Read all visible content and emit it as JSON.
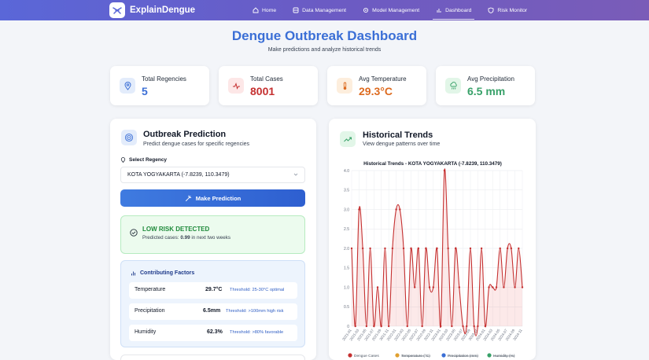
{
  "nav": {
    "brand": "ExplainDengue",
    "items": [
      {
        "label": "Home",
        "icon": "home-icon",
        "active": false
      },
      {
        "label": "Data Management",
        "icon": "database-icon",
        "active": false
      },
      {
        "label": "Model Management",
        "icon": "gear-icon",
        "active": false
      },
      {
        "label": "Dashboard",
        "icon": "bar-chart-icon",
        "active": true
      },
      {
        "label": "Risk Monitor",
        "icon": "shield-icon",
        "active": false
      }
    ]
  },
  "header": {
    "title": "Dengue Outbreak Dashboard",
    "subtitle": "Make predictions and analyze historical trends"
  },
  "stats": [
    {
      "label": "Total Regencies",
      "value": "5",
      "color": "#3b6fd6",
      "icon": "map-pin-icon"
    },
    {
      "label": "Total Cases",
      "value": "8001",
      "color": "#c53030",
      "icon": "pulse-icon"
    },
    {
      "label": "Avg Temperature",
      "value": "29.3°C",
      "color": "#dd6b20",
      "icon": "thermometer-icon"
    },
    {
      "label": "Avg Precipitation",
      "value": "6.5 mm",
      "color": "#38a169",
      "icon": "cloud-rain-icon"
    }
  ],
  "prediction": {
    "title": "Outbreak Prediction",
    "subtitle": "Predict dengue cases for specific regencies",
    "select_label": "Select Regency",
    "selected_regency": "KOTA YOGYAKARTA (-7.8239, 110.3479)",
    "button_label": "Make Prediction",
    "risk": {
      "title": "LOW RISK DETECTED",
      "prefix": "Predicted cases: ",
      "value": "0.99",
      "suffix": " in next two weeks"
    },
    "factors": {
      "title": "Contributing Factors",
      "items": [
        {
          "name": "Temperature",
          "value": "29.7°C",
          "threshold": "Threshold: 25-30°C optimal"
        },
        {
          "name": "Precipitation",
          "value": "6.5mm",
          "threshold": "Threshold: >100mm high risk"
        },
        {
          "name": "Humidity",
          "value": "62.3%",
          "threshold": "Threshold: >80% favorable"
        }
      ]
    }
  },
  "trends": {
    "title": "Historical Trends",
    "subtitle": "View dengue patterns over time"
  },
  "chart_data": {
    "type": "line",
    "title": "Historical Trends - KOTA YOGYAKARTA (-7.8239, 110.3479)",
    "ylim": [
      0,
      4
    ],
    "yticks": [
      "0",
      "0.5",
      "1.0",
      "1.5",
      "2.0",
      "2.5",
      "3.0",
      "3.5",
      "4.0"
    ],
    "xtick_labels": [
      "2021-01",
      "2021-03",
      "2021-05",
      "2021-07",
      "2021-09",
      "2021-11",
      "2022-01",
      "2022-03",
      "2022-05",
      "2022-07",
      "2022-09",
      "2022-11",
      "2023-01",
      "2023-03",
      "2023-05",
      "2023-07",
      "2023-09",
      "2023-11",
      "2024-01",
      "2024-03",
      "2024-05",
      "2024-07",
      "2024-09",
      "2024-11"
    ],
    "grid": true,
    "legend_position": "bottom",
    "series": [
      {
        "name": "Dengue Cases",
        "color": "#c53030",
        "hidden": false,
        "values": [
          2,
          0,
          3,
          2,
          0,
          2,
          0,
          1,
          0,
          2,
          0,
          2,
          3,
          3,
          2,
          0,
          2,
          1,
          2,
          0,
          2,
          1,
          1,
          2,
          0,
          4,
          2,
          0,
          2,
          1,
          0,
          0,
          2,
          0,
          0,
          2,
          0,
          1,
          1,
          1,
          2,
          1,
          2,
          2,
          1,
          2,
          1
        ]
      },
      {
        "name": "Temperature (°C)",
        "color": "#e0a030",
        "hidden": true,
        "values": []
      },
      {
        "name": "Precipitation (mm)",
        "color": "#3b6fd6",
        "hidden": true,
        "values": []
      },
      {
        "name": "Humidity (%)",
        "color": "#38a169",
        "hidden": true,
        "values": []
      }
    ]
  }
}
